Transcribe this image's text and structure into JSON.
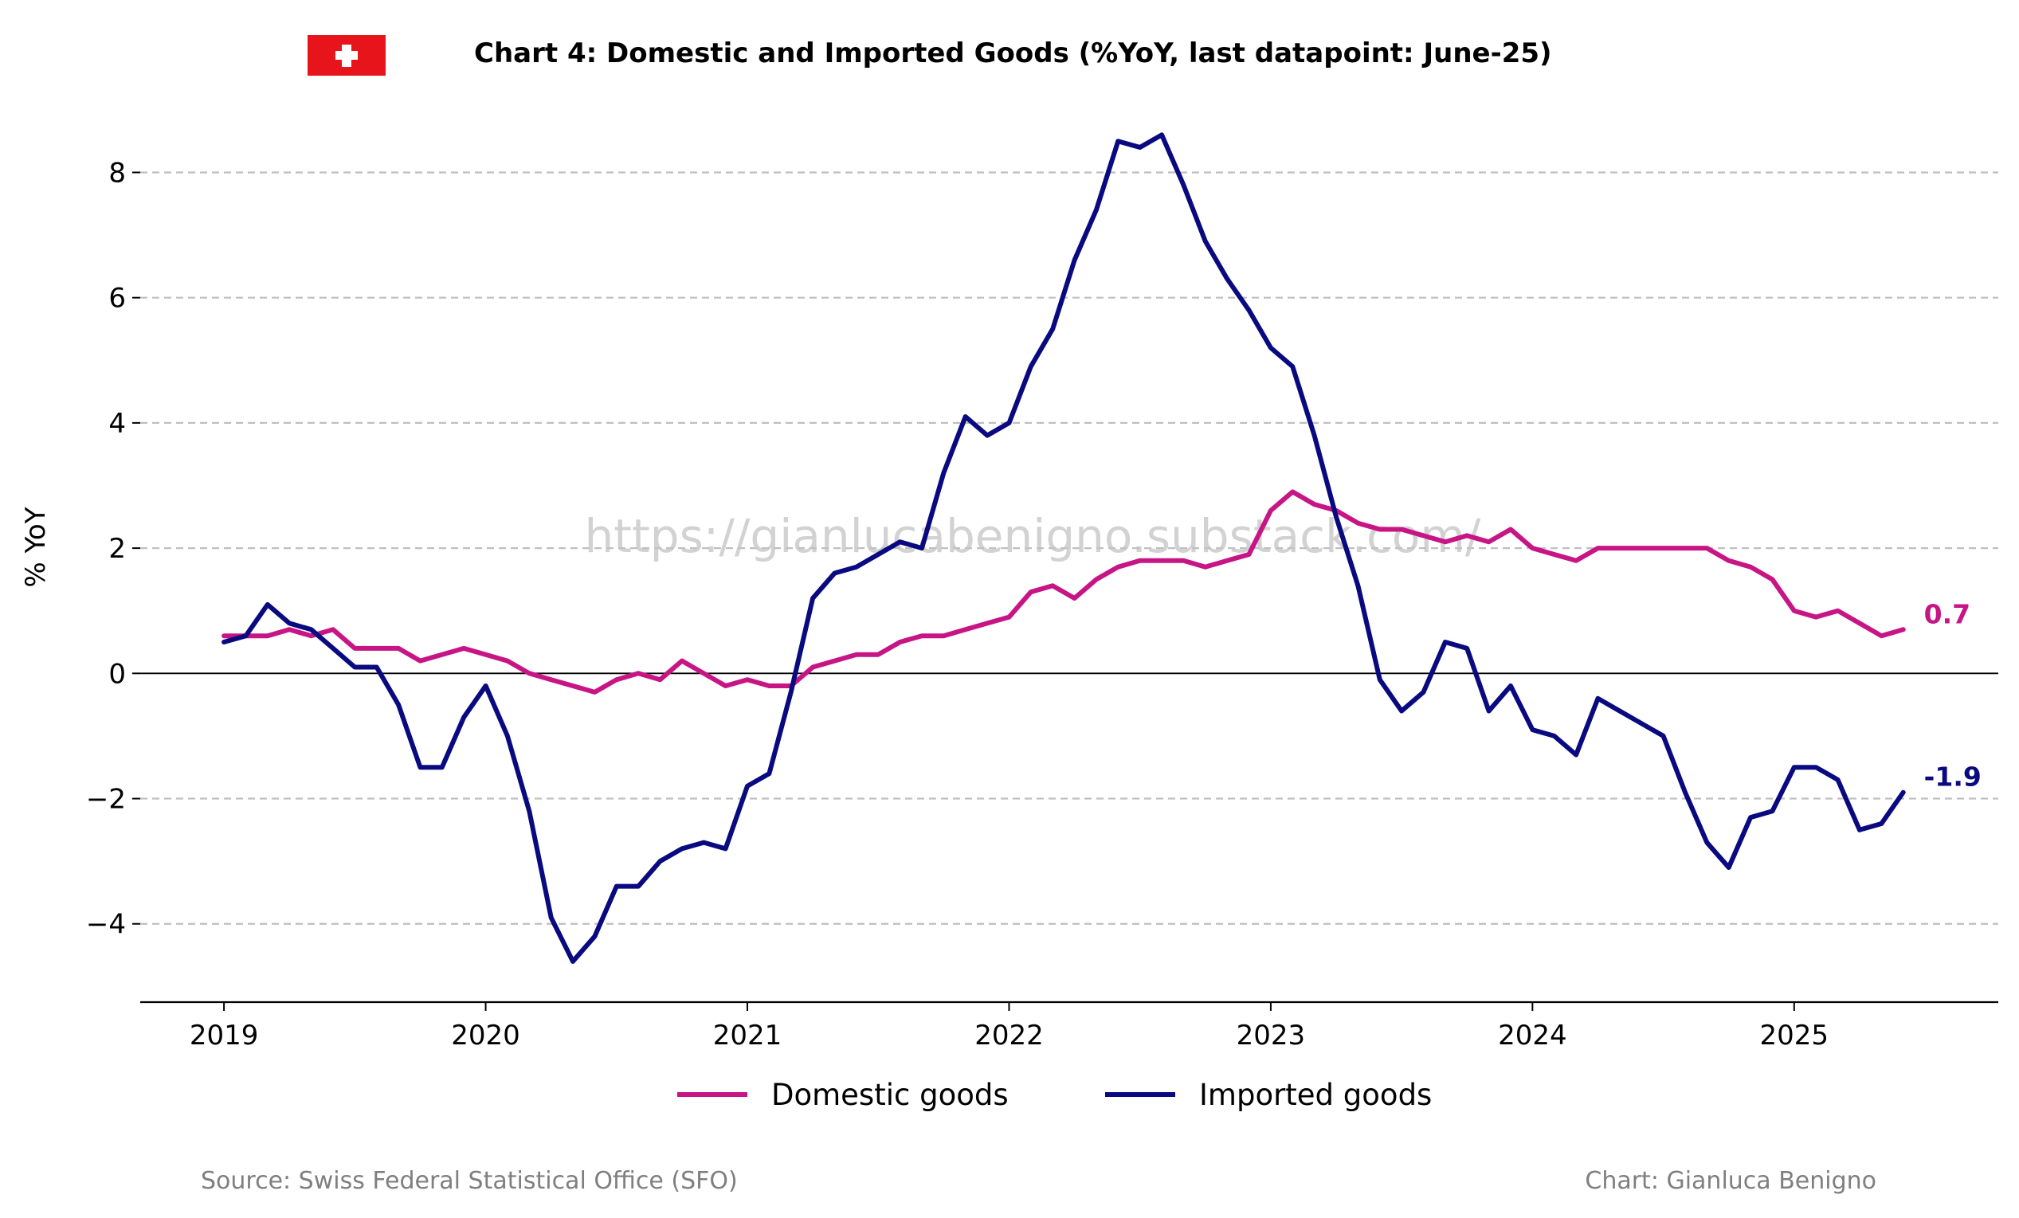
{
  "title": "Chart 4: Domestic and Imported Goods (%YoY, last datapoint: June-25)",
  "watermark": "https://gianlucabenigno.substack.com/",
  "source": "Source: Swiss Federal Statistical Office (SFO)",
  "credit": "Chart: Gianluca Benigno",
  "flag": {
    "name": "swiss-flag-icon",
    "bg": "#e8141c",
    "cross": "#ffffff"
  },
  "chart_data": {
    "type": "line",
    "title": "Chart 4: Domestic and Imported Goods (%YoY, last datapoint: June-25)",
    "xlabel": "",
    "ylabel": "% YoY",
    "xlim": [
      2018.68,
      2025.78
    ],
    "ylim": [
      -5.25,
      9.1
    ],
    "yticks": [
      -4,
      -2,
      0,
      2,
      4,
      6,
      8
    ],
    "ytick_labels": [
      "−4",
      "−2",
      "0",
      "2",
      "4",
      "6",
      "8"
    ],
    "xticks": [
      2019,
      2020,
      2021,
      2022,
      2023,
      2024,
      2025
    ],
    "xtick_labels": [
      "2019",
      "2020",
      "2021",
      "2022",
      "2023",
      "2024",
      "2025"
    ],
    "grid": "horizontal dashed",
    "legend": "bottom-center",
    "start": "2019-01",
    "x_step": "monthly",
    "series": [
      {
        "name": "Domestic goods",
        "color": "#c71585",
        "end_label": "0.7",
        "values": [
          0.6,
          0.6,
          0.6,
          0.7,
          0.6,
          0.7,
          0.4,
          0.4,
          0.4,
          0.2,
          0.3,
          0.4,
          0.3,
          0.2,
          0.0,
          -0.1,
          -0.2,
          -0.3,
          -0.1,
          0.0,
          -0.1,
          0.2,
          0.0,
          -0.2,
          -0.1,
          -0.2,
          -0.2,
          0.1,
          0.2,
          0.3,
          0.3,
          0.5,
          0.6,
          0.6,
          0.7,
          0.8,
          0.9,
          1.3,
          1.4,
          1.2,
          1.5,
          1.7,
          1.8,
          1.8,
          1.8,
          1.7,
          1.8,
          1.9,
          2.6,
          2.9,
          2.7,
          2.6,
          2.4,
          2.3,
          2.3,
          2.2,
          2.1,
          2.2,
          2.1,
          2.3,
          2.0,
          1.9,
          1.8,
          2.0,
          2.0,
          2.0,
          2.0,
          2.0,
          2.0,
          1.8,
          1.7,
          1.5,
          1.0,
          0.9,
          1.0,
          0.8,
          0.6,
          0.7
        ]
      },
      {
        "name": "Imported goods",
        "color": "#0a0a80",
        "end_label": "-1.9",
        "values": [
          0.5,
          0.6,
          1.1,
          0.8,
          0.7,
          0.4,
          0.1,
          0.1,
          -0.5,
          -1.5,
          -1.5,
          -0.7,
          -0.2,
          -1.0,
          -2.2,
          -3.9,
          -4.6,
          -4.2,
          -3.4,
          -3.4,
          -3.0,
          -2.8,
          -2.7,
          -2.8,
          -1.8,
          -1.6,
          -0.3,
          1.2,
          1.6,
          1.7,
          1.9,
          2.1,
          2.0,
          3.2,
          4.1,
          3.8,
          4.0,
          4.9,
          5.5,
          6.6,
          7.4,
          8.5,
          8.4,
          8.6,
          7.8,
          6.9,
          6.3,
          5.8,
          5.2,
          4.9,
          3.8,
          2.5,
          1.4,
          -0.1,
          -0.6,
          -0.3,
          0.5,
          0.4,
          -0.6,
          -0.2,
          -0.9,
          -1.0,
          -1.3,
          -0.4,
          -0.6,
          -0.8,
          -1.0,
          -1.9,
          -2.7,
          -3.1,
          -2.3,
          -2.2,
          -1.5,
          -1.5,
          -1.7,
          -2.5,
          -2.4,
          -1.9
        ]
      }
    ]
  }
}
